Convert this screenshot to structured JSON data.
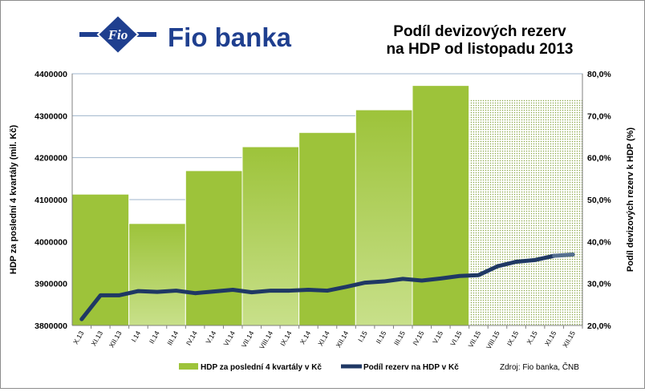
{
  "brand": {
    "logo_text": "Fio",
    "name": "Fio banka"
  },
  "title_lines": [
    "Podíl devizových rezerv",
    "na HDP od listopadu 2013"
  ],
  "source": "Zdroj: Fio banka, ČNB",
  "colors": {
    "bar": "#9dc33a",
    "bar_light": "#c8e08a",
    "line": "#1f3864",
    "brand": "#1f3f8f",
    "forecast_dots": "#8aa848"
  },
  "chart_data": {
    "type": "bar+line",
    "categories": [
      "X.13",
      "XI.13",
      "XII.13",
      "I.14",
      "II.14",
      "III.14",
      "IV.14",
      "V.14",
      "VI.14",
      "VII.14",
      "VIII.14",
      "IX.14",
      "X.14",
      "XI.14",
      "XII.14",
      "I.15",
      "II.15",
      "III.15",
      "IV.15",
      "V.15",
      "VI.15",
      "VII.15",
      "VIII.15",
      "IX.15",
      "X.15",
      "XI.15",
      "XII.15"
    ],
    "series": [
      {
        "name": "HDP za poslední 4 kvartály v Kč",
        "type": "bar",
        "axis": "left",
        "values": [
          4113000,
          4113000,
          4113000,
          4043000,
          4043000,
          4043000,
          4169000,
          4169000,
          4169000,
          4226000,
          4226000,
          4226000,
          4260000,
          4260000,
          4260000,
          4314000,
          4314000,
          4314000,
          4372000,
          4372000,
          4372000,
          4340000,
          4340000,
          4340000,
          4340000,
          4340000,
          4340000
        ],
        "forecast_from": "VII.15"
      },
      {
        "name": "Podíl rezerv na HDP v Kč",
        "type": "line",
        "axis": "right",
        "values": [
          21.5,
          27.2,
          27.2,
          28.2,
          28.0,
          28.3,
          27.7,
          28.1,
          28.5,
          27.9,
          28.3,
          28.3,
          28.5,
          28.3,
          29.2,
          30.2,
          30.5,
          31.1,
          30.7,
          31.2,
          31.8,
          32.0,
          34.1,
          35.2,
          35.6,
          36.6,
          36.9
        ],
        "forecast_from": "XI.15"
      }
    ],
    "y_left": {
      "label": "HDP za poslední 4 kvartály (mil. Kč)",
      "range": [
        3800000,
        4400000
      ],
      "ticks": [
        "3800000",
        "3900000",
        "4000000",
        "4100000",
        "4200000",
        "4300000",
        "4400000"
      ]
    },
    "y_right": {
      "label": "Podíl devizových rezerv k HDP (%)",
      "range": [
        20,
        80
      ],
      "ticks": [
        "20,0%",
        "30,0%",
        "40,0%",
        "50,0%",
        "60,0%",
        "70,0%",
        "80,0%"
      ]
    },
    "grid": true,
    "legend_position": "bottom"
  }
}
